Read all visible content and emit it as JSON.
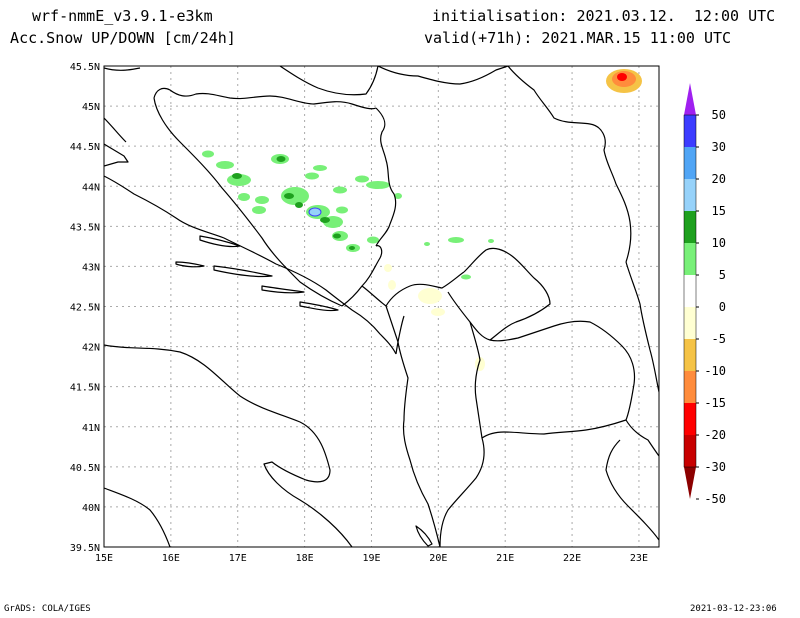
{
  "header": {
    "model": "wrf-nmmE_v3.9.1-e3km",
    "variable": "n Acc.Snow UP/DOWN [cm/24h]",
    "initialisation": "initialisation: 2021.03.12.  12:00 UTC",
    "valid": "valid(+71h): 2021.MAR.15 11:00 UTC"
  },
  "footer": {
    "credit": "GrADS: COLA/IGES",
    "timestamp": "2021-03-12-23:06"
  },
  "map": {
    "lon_range": [
      15,
      23.3
    ],
    "lat_range": [
      39.5,
      45.5
    ],
    "lon_ticks": [
      "15E",
      "16E",
      "17E",
      "18E",
      "19E",
      "20E",
      "21E",
      "22E",
      "23E"
    ],
    "lat_ticks": [
      "39.5N",
      "40N",
      "40.5N",
      "41N",
      "41.5N",
      "42N",
      "42.5N",
      "43N",
      "43.5N",
      "44N",
      "44.5N",
      "45N",
      "45.5N"
    ],
    "grid_dashed": true
  },
  "colorbar": {
    "labels": [
      "50",
      "30",
      "20",
      "15",
      "10",
      "5",
      "0",
      "-5",
      "-10",
      "-15",
      "-20",
      "-30",
      "-50"
    ],
    "colors": [
      "#a020f0",
      "#3c3cff",
      "#50a5f5",
      "#96d2fa",
      "#1ea01e",
      "#78f078",
      "#ffffff",
      "#ffffd2",
      "#f5c346",
      "#ff8c3c",
      "#ff0000",
      "#c80000",
      "#8c0000"
    ]
  },
  "icons": {
    "arrow_top": "triangle-up",
    "arrow_bottom": "triangle-down"
  }
}
